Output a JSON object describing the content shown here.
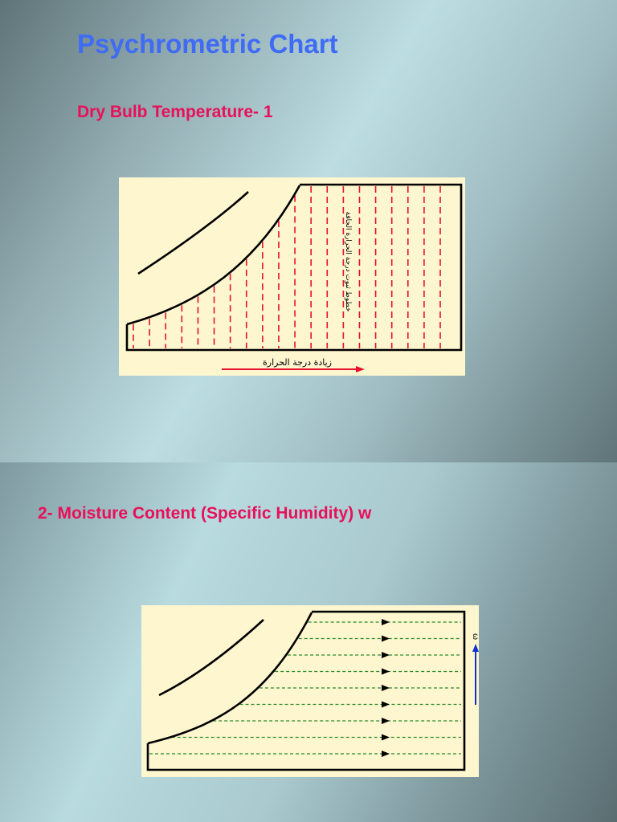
{
  "slide1": {
    "title": "Psychrometric Chart",
    "subtitle": "Dry Bulb Temperature- 1",
    "figure": {
      "axis_arrow_label": "زيادة درجة الحرارة",
      "vertical_label": "خطوط ثبوت درجة الحرارة الجافة",
      "line_color": "#e8102a",
      "line_count": 20
    }
  },
  "slide2": {
    "subtitle": "2- Moisture Content (Specific Humidity) w",
    "figure": {
      "axis_symbol": "ω",
      "line_color": "#2a8a2a",
      "arrow_color": "#1030d0",
      "line_count": 9
    }
  }
}
